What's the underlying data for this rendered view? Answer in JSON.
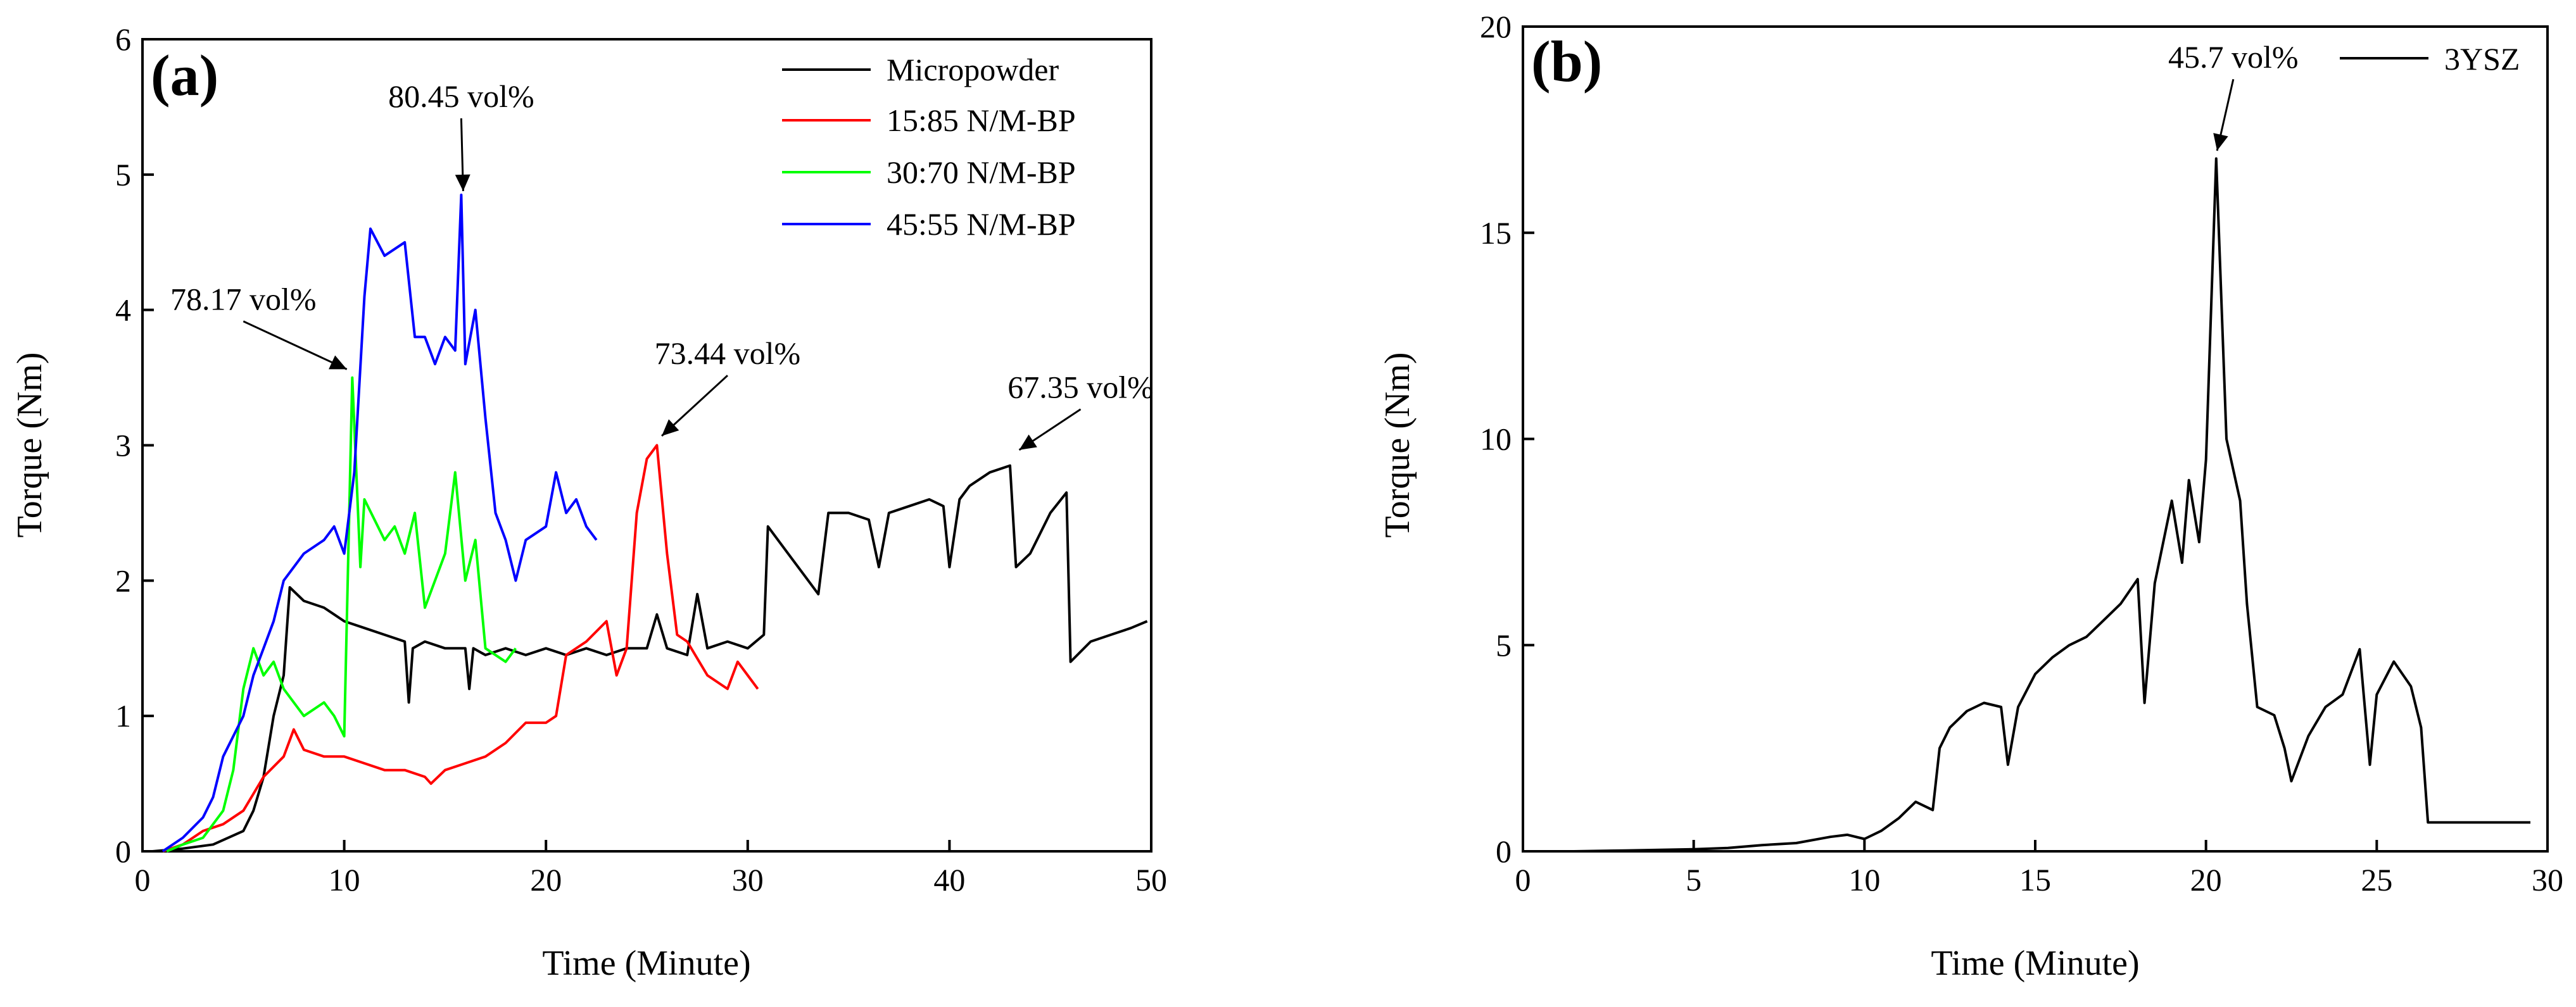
{
  "chart_data": [
    {
      "panel": "(a)",
      "type": "line",
      "xlabel": "Time (Minute)",
      "ylabel": "Torque (Nm)",
      "xlim": [
        0,
        50
      ],
      "ylim": [
        0,
        6
      ],
      "xticks": [
        0,
        10,
        20,
        30,
        40,
        50
      ],
      "yticks": [
        0,
        1,
        2,
        3,
        4,
        5,
        6
      ],
      "grid": false,
      "legend_position": "top-right",
      "series": [
        {
          "name": "Micropowder",
          "color": "#000000",
          "points": [
            [
              0.5,
              0
            ],
            [
              2,
              0.02
            ],
            [
              3.5,
              0.05
            ],
            [
              5,
              0.15
            ],
            [
              5.5,
              0.3
            ],
            [
              6,
              0.55
            ],
            [
              6.5,
              1.0
            ],
            [
              7,
              1.3
            ],
            [
              7.3,
              1.95
            ],
            [
              8,
              1.85
            ],
            [
              9,
              1.8
            ],
            [
              9.5,
              1.75
            ],
            [
              10,
              1.7
            ],
            [
              11,
              1.65
            ],
            [
              12,
              1.6
            ],
            [
              13,
              1.55
            ],
            [
              13.2,
              1.1
            ],
            [
              13.4,
              1.5
            ],
            [
              14,
              1.55
            ],
            [
              15,
              1.5
            ],
            [
              16,
              1.5
            ],
            [
              16.2,
              1.2
            ],
            [
              16.4,
              1.5
            ],
            [
              17,
              1.45
            ],
            [
              18,
              1.5
            ],
            [
              19,
              1.45
            ],
            [
              20,
              1.5
            ],
            [
              21,
              1.45
            ],
            [
              22,
              1.5
            ],
            [
              23,
              1.45
            ],
            [
              24,
              1.5
            ],
            [
              25,
              1.5
            ],
            [
              25.5,
              1.75
            ],
            [
              26,
              1.5
            ],
            [
              27,
              1.45
            ],
            [
              27.5,
              1.9
            ],
            [
              28,
              1.5
            ],
            [
              29,
              1.55
            ],
            [
              30,
              1.5
            ],
            [
              30.8,
              1.6
            ],
            [
              31,
              2.4
            ],
            [
              32,
              2.2
            ],
            [
              33,
              2.0
            ],
            [
              33.5,
              1.9
            ],
            [
              34,
              2.5
            ],
            [
              35,
              2.5
            ],
            [
              36,
              2.45
            ],
            [
              36.5,
              2.1
            ],
            [
              37,
              2.5
            ],
            [
              38,
              2.55
            ],
            [
              39,
              2.6
            ],
            [
              39.7,
              2.55
            ],
            [
              40,
              2.1
            ],
            [
              40.5,
              2.6
            ],
            [
              41,
              2.7
            ],
            [
              42,
              2.8
            ],
            [
              43,
              2.85
            ],
            [
              43.3,
              2.1
            ],
            [
              44,
              2.2
            ],
            [
              45,
              2.5
            ],
            [
              45.8,
              2.65
            ],
            [
              46,
              1.4
            ],
            [
              47,
              1.55
            ],
            [
              48,
              1.6
            ],
            [
              49,
              1.65
            ],
            [
              49.8,
              1.7
            ]
          ]
        },
        {
          "name": "15:85 N/M-BP",
          "color": "#ff0000",
          "points": [
            [
              1,
              0
            ],
            [
              2,
              0.05
            ],
            [
              3,
              0.15
            ],
            [
              4,
              0.2
            ],
            [
              5,
              0.3
            ],
            [
              6,
              0.55
            ],
            [
              7,
              0.7
            ],
            [
              7.5,
              0.9
            ],
            [
              8,
              0.75
            ],
            [
              9,
              0.7
            ],
            [
              10,
              0.7
            ],
            [
              11,
              0.65
            ],
            [
              12,
              0.6
            ],
            [
              13,
              0.6
            ],
            [
              14,
              0.55
            ],
            [
              14.3,
              0.5
            ],
            [
              15,
              0.6
            ],
            [
              16,
              0.65
            ],
            [
              17,
              0.7
            ],
            [
              18,
              0.8
            ],
            [
              19,
              0.95
            ],
            [
              20,
              0.95
            ],
            [
              20.5,
              1.0
            ],
            [
              21,
              1.45
            ],
            [
              22,
              1.55
            ],
            [
              23,
              1.7
            ],
            [
              23.5,
              1.3
            ],
            [
              24,
              1.5
            ],
            [
              24.5,
              2.5
            ],
            [
              25,
              2.9
            ],
            [
              25.5,
              3.0
            ],
            [
              26,
              2.2
            ],
            [
              26.5,
              1.6
            ],
            [
              27,
              1.55
            ],
            [
              28,
              1.3
            ],
            [
              29,
              1.2
            ],
            [
              29.5,
              1.4
            ],
            [
              30,
              1.3
            ],
            [
              30.5,
              1.2
            ]
          ]
        },
        {
          "name": "30:70 N/M-BP",
          "color": "#00ff00",
          "points": [
            [
              1.2,
              0
            ],
            [
              2,
              0.05
            ],
            [
              3,
              0.1
            ],
            [
              4,
              0.3
            ],
            [
              4.5,
              0.6
            ],
            [
              5,
              1.2
            ],
            [
              5.5,
              1.5
            ],
            [
              6,
              1.3
            ],
            [
              6.5,
              1.4
            ],
            [
              7,
              1.2
            ],
            [
              8,
              1.0
            ],
            [
              9,
              1.1
            ],
            [
              9.5,
              1.0
            ],
            [
              10,
              0.85
            ],
            [
              10.4,
              3.5
            ],
            [
              10.8,
              2.1
            ],
            [
              11,
              2.6
            ],
            [
              12,
              2.3
            ],
            [
              12.5,
              2.4
            ],
            [
              13,
              2.2
            ],
            [
              13.5,
              2.5
            ],
            [
              14,
              1.8
            ],
            [
              15,
              2.2
            ],
            [
              15.5,
              2.8
            ],
            [
              16,
              2.0
            ],
            [
              16.5,
              2.3
            ],
            [
              17,
              1.5
            ],
            [
              18,
              1.4
            ],
            [
              18.5,
              1.5
            ]
          ]
        },
        {
          "name": "45:55 N/M-BP",
          "color": "#0000ff",
          "points": [
            [
              1,
              0
            ],
            [
              2,
              0.1
            ],
            [
              3,
              0.25
            ],
            [
              3.5,
              0.4
            ],
            [
              4,
              0.7
            ],
            [
              5,
              1.0
            ],
            [
              5.5,
              1.3
            ],
            [
              6,
              1.5
            ],
            [
              6.5,
              1.7
            ],
            [
              7,
              2.0
            ],
            [
              8,
              2.2
            ],
            [
              9,
              2.3
            ],
            [
              9.5,
              2.4
            ],
            [
              10,
              2.2
            ],
            [
              10.5,
              2.8
            ],
            [
              11,
              4.1
            ],
            [
              11.3,
              4.6
            ],
            [
              12,
              4.4
            ],
            [
              13,
              4.5
            ],
            [
              13.5,
              3.8
            ],
            [
              14,
              3.8
            ],
            [
              14.5,
              3.6
            ],
            [
              15,
              3.8
            ],
            [
              15.5,
              3.7
            ],
            [
              15.8,
              4.85
            ],
            [
              16,
              3.6
            ],
            [
              16.5,
              4.0
            ],
            [
              17,
              3.2
            ],
            [
              17.5,
              2.5
            ],
            [
              18,
              2.3
            ],
            [
              18.5,
              2.0
            ],
            [
              19,
              2.3
            ],
            [
              20,
              2.4
            ],
            [
              20.5,
              2.8
            ],
            [
              21,
              2.5
            ],
            [
              21.5,
              2.6
            ],
            [
              22,
              2.4
            ],
            [
              22.5,
              2.3
            ]
          ]
        }
      ],
      "annotations": [
        {
          "text": "80.45 vol%",
          "x": 15.9,
          "y": 4.85,
          "label_x": 15.8,
          "label_y": 5.5
        },
        {
          "text": "78.17 vol%",
          "x": 10.3,
          "y": 3.55,
          "label_x": 5.0,
          "label_y": 4.0
        },
        {
          "text": "73.44 vol%",
          "x": 25.6,
          "y": 3.05,
          "label_x": 29.0,
          "label_y": 3.6
        },
        {
          "text": "67.35 vol%",
          "x": 43.3,
          "y": 2.95,
          "label_x": 46.5,
          "label_y": 3.35
        }
      ]
    },
    {
      "panel": "(b)",
      "type": "line",
      "xlabel": "Time (Minute)",
      "ylabel": "Torque (Nm)",
      "xlim": [
        0,
        30
      ],
      "ylim": [
        0,
        20
      ],
      "xticks": [
        0,
        5,
        10,
        15,
        20,
        25,
        30
      ],
      "yticks": [
        0,
        5,
        10,
        15,
        20
      ],
      "grid": false,
      "legend_position": "top-right",
      "series": [
        {
          "name": "3YSZ",
          "color": "#000000",
          "points": [
            [
              1.5,
              0
            ],
            [
              3,
              0.02
            ],
            [
              5,
              0.05
            ],
            [
              6,
              0.08
            ],
            [
              7,
              0.15
            ],
            [
              8,
              0.2
            ],
            [
              9,
              0.35
            ],
            [
              9.5,
              0.4
            ],
            [
              10,
              0.3
            ],
            [
              10.5,
              0.5
            ],
            [
              11,
              0.8
            ],
            [
              11.5,
              1.2
            ],
            [
              12,
              1.0
            ],
            [
              12.2,
              2.5
            ],
            [
              12.5,
              3.0
            ],
            [
              13,
              3.4
            ],
            [
              13.5,
              3.6
            ],
            [
              14,
              3.5
            ],
            [
              14.2,
              2.1
            ],
            [
              14.5,
              3.5
            ],
            [
              15,
              4.3
            ],
            [
              15.5,
              4.7
            ],
            [
              16,
              5.0
            ],
            [
              16.5,
              5.2
            ],
            [
              17,
              5.6
            ],
            [
              17.5,
              6.0
            ],
            [
              18,
              6.6
            ],
            [
              18.2,
              3.6
            ],
            [
              18.5,
              6.5
            ],
            [
              19,
              8.5
            ],
            [
              19.3,
              7.0
            ],
            [
              19.5,
              9.0
            ],
            [
              19.8,
              7.5
            ],
            [
              20,
              9.5
            ],
            [
              20.3,
              16.8
            ],
            [
              20.6,
              10.0
            ],
            [
              21,
              8.5
            ],
            [
              21.2,
              6.0
            ],
            [
              21.5,
              3.5
            ],
            [
              22,
              3.3
            ],
            [
              22.3,
              2.5
            ],
            [
              22.5,
              1.7
            ],
            [
              23,
              2.8
            ],
            [
              23.5,
              3.5
            ],
            [
              24,
              3.8
            ],
            [
              24.5,
              4.9
            ],
            [
              24.8,
              2.1
            ],
            [
              25,
              3.8
            ],
            [
              25.5,
              4.6
            ],
            [
              26,
              4.0
            ],
            [
              26.3,
              3.0
            ],
            [
              26.5,
              0.7
            ],
            [
              27,
              0.7
            ],
            [
              28,
              0.7
            ],
            [
              29,
              0.7
            ],
            [
              29.5,
              0.7
            ]
          ]
        }
      ],
      "annotations": [
        {
          "text": "45.7 vol%",
          "x": 20.3,
          "y": 16.9,
          "label_x": 20.8,
          "label_y": 19.0
        }
      ]
    }
  ]
}
